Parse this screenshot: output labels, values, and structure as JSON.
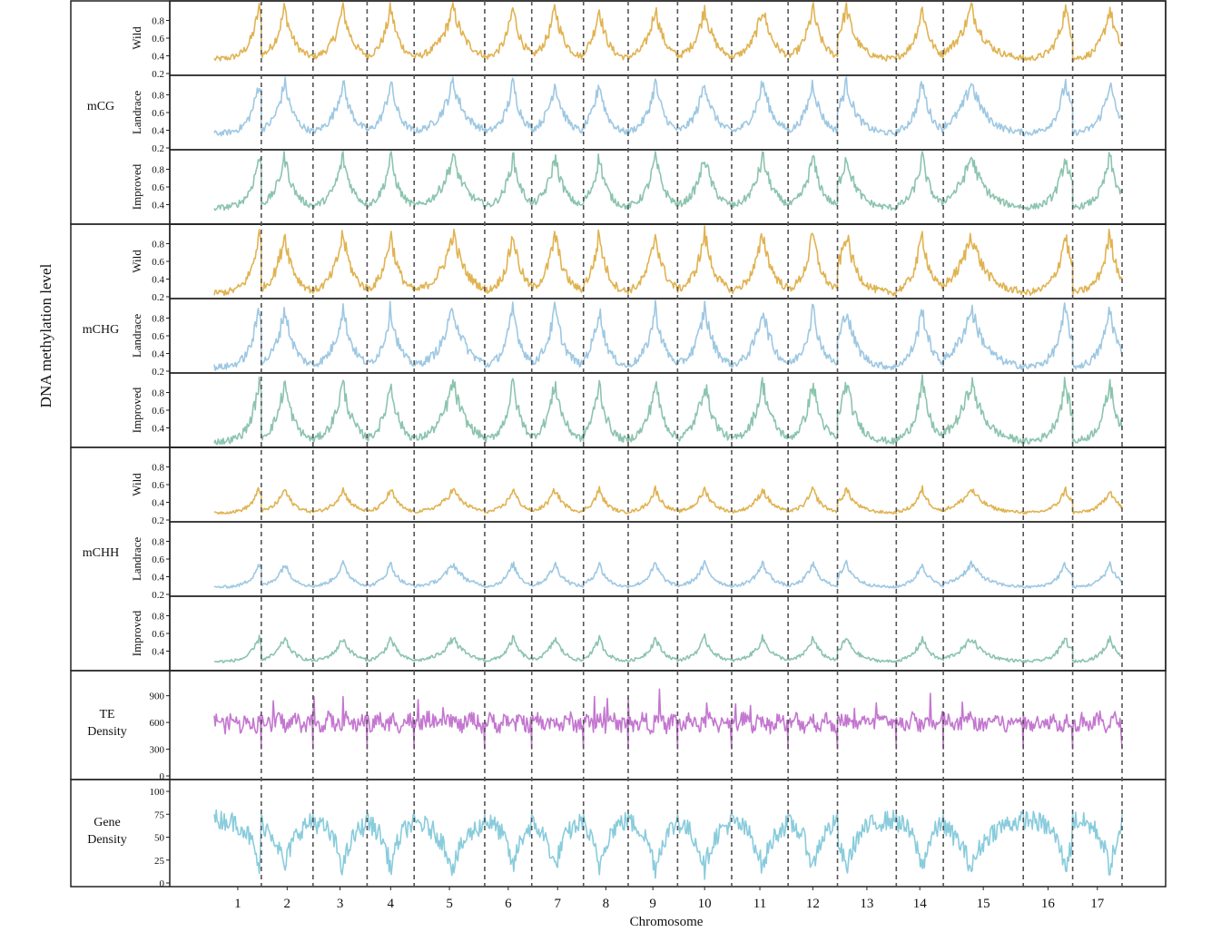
{
  "chart_data": {
    "type": "line",
    "ylabel": "DNA methylation level",
    "xlabel": "Chromosome",
    "chromosomes": [
      "1",
      "2",
      "3",
      "4",
      "5",
      "6",
      "7",
      "8",
      "9",
      "10",
      "11",
      "12",
      "13",
      "14",
      "15",
      "16",
      "17"
    ],
    "chromosome_relative_lengths": [
      1.0,
      1.1,
      1.15,
      1.0,
      1.5,
      1.0,
      1.1,
      0.95,
      1.05,
      1.15,
      1.2,
      1.05,
      1.25,
      1.0,
      1.7,
      1.05,
      1.05
    ],
    "centromere_relative_position": [
      0.95,
      0.45,
      0.55,
      0.5,
      0.55,
      0.6,
      0.45,
      0.35,
      0.55,
      0.5,
      0.55,
      0.5,
      0.15,
      0.55,
      0.35,
      0.85,
      0.75
    ],
    "context_groups": [
      {
        "name": "mCG",
        "panels": [
          {
            "label": "Wild",
            "color": "#E0B352",
            "ylim": [
              0.2,
              1.0
            ],
            "yticks": [
              "0.2",
              "0.4",
              "0.6",
              "0.8"
            ],
            "base": 0.36,
            "peak": 0.95
          },
          {
            "label": "Landrace",
            "color": "#9EC8E2",
            "ylim": [
              0.2,
              1.0
            ],
            "yticks": [
              "0.2",
              "0.4",
              "0.6",
              "0.8"
            ],
            "base": 0.36,
            "peak": 0.95
          },
          {
            "label": "Improved",
            "color": "#8CC4AE",
            "ylim": [
              0.2,
              1.0
            ],
            "yticks": [
              "0.4",
              "0.6",
              "0.8"
            ],
            "base": 0.36,
            "peak": 0.95
          }
        ]
      },
      {
        "name": "mCHG",
        "panels": [
          {
            "label": "Wild",
            "color": "#E0B352",
            "ylim": [
              0.2,
              1.0
            ],
            "yticks": [
              "0.2",
              "0.4",
              "0.6",
              "0.8"
            ],
            "base": 0.24,
            "peak": 0.92
          },
          {
            "label": "Landrace",
            "color": "#9EC8E2",
            "ylim": [
              0.2,
              1.0
            ],
            "yticks": [
              "0.2",
              "0.4",
              "0.6",
              "0.8"
            ],
            "base": 0.24,
            "peak": 0.92
          },
          {
            "label": "Improved",
            "color": "#8CC4AE",
            "ylim": [
              0.2,
              1.0
            ],
            "yticks": [
              "0.4",
              "0.6",
              "0.8"
            ],
            "base": 0.24,
            "peak": 0.92
          }
        ]
      },
      {
        "name": "mCHH",
        "panels": [
          {
            "label": "Wild",
            "color": "#E0B352",
            "ylim": [
              0.2,
              1.0
            ],
            "yticks": [
              "0.2",
              "0.4",
              "0.6",
              "0.8"
            ],
            "base": 0.28,
            "peak": 0.55
          },
          {
            "label": "Landrace",
            "color": "#9EC8E2",
            "ylim": [
              0.2,
              1.0
            ],
            "yticks": [
              "0.2",
              "0.4",
              "0.6",
              "0.8"
            ],
            "base": 0.28,
            "peak": 0.55
          },
          {
            "label": "Improved",
            "color": "#8CC4AE",
            "ylim": [
              0.2,
              1.0
            ],
            "yticks": [
              "0.4",
              "0.6",
              "0.8"
            ],
            "base": 0.28,
            "peak": 0.55
          }
        ]
      }
    ],
    "density_panels": [
      {
        "label_lines": [
          "TE",
          "Density"
        ],
        "color": "#C477D0",
        "ylim": [
          0,
          1100
        ],
        "yticks": [
          "0",
          "300",
          "600",
          "900"
        ],
        "mean": 600
      },
      {
        "label_lines": [
          "Gene",
          "Density"
        ],
        "color": "#89CCDC",
        "ylim": [
          0,
          105
        ],
        "yticks": [
          "0",
          "25",
          "50",
          "75",
          "100"
        ],
        "base": 15,
        "peak": 70
      }
    ],
    "colors": {
      "Wild": "#E0B352",
      "Landrace": "#9EC8E2",
      "Improved": "#8CC4AE",
      "TE": "#C477D0",
      "Gene": "#89CCDC",
      "separator": "#555555"
    }
  }
}
